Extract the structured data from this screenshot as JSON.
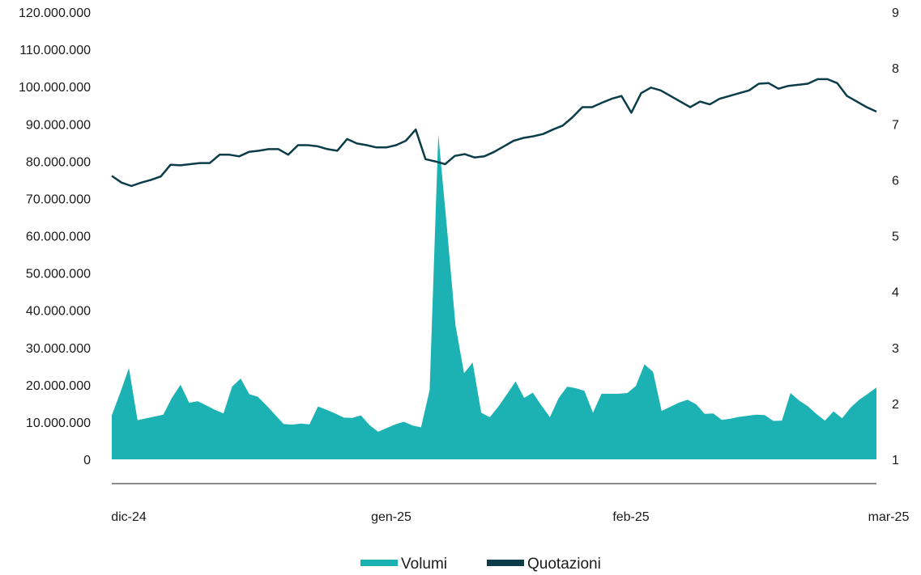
{
  "chart_data": {
    "type": "area",
    "x_labels": [
      "dic-24",
      "gen-25",
      "feb-25",
      "mar-25"
    ],
    "y_left": {
      "ticks": [
        "0",
        "10.000.000",
        "20.000.000",
        "30.000.000",
        "40.000.000",
        "50.000.000",
        "60.000.000",
        "70.000.000",
        "80.000.000",
        "90.000.000",
        "100.000.000",
        "110.000.000",
        "120.000.000"
      ],
      "range": [
        0,
        120000000
      ]
    },
    "y_right": {
      "ticks": [
        "1",
        "2",
        "3",
        "4",
        "5",
        "6",
        "7",
        "8",
        "9"
      ],
      "range": [
        1,
        9
      ]
    },
    "grid": false,
    "legend_position": "bottom-center",
    "series": [
      {
        "name": "Volumi",
        "kind": "area",
        "axis": "left",
        "color": "#1cb2b3",
        "values": [
          11800000,
          18000000,
          24500000,
          10500000,
          11000000,
          11500000,
          12000000,
          16500000,
          20000000,
          15200000,
          15600000,
          14500000,
          13300000,
          12300000,
          19500000,
          21700000,
          17500000,
          16800000,
          14500000,
          12000000,
          9500000,
          9300000,
          9600000,
          9400000,
          14200000,
          13300000,
          12300000,
          11200000,
          11100000,
          11800000,
          9200000,
          7400000,
          8400000,
          9400000,
          10100000,
          9100000,
          8600000,
          18600000,
          87200000,
          62300000,
          36000000,
          23100000,
          26000000,
          12500000,
          11300000,
          14200000,
          17500000,
          20900000,
          16500000,
          17900000,
          14500000,
          11300000,
          16400000,
          19500000,
          19100000,
          18400000,
          12500000,
          17600000,
          17600000,
          17600000,
          17800000,
          19700000,
          25500000,
          23500000,
          13000000,
          14100000,
          15200000,
          16000000,
          14800000,
          12200000,
          12300000,
          10600000,
          10900000,
          11400000,
          11700000,
          12000000,
          11900000,
          10300000,
          10400000,
          17800000,
          15800000,
          14300000,
          12200000,
          10400000,
          12900000,
          11000000,
          13900000,
          16000000,
          17600000,
          19300000
        ]
      },
      {
        "name": "Quotazioni",
        "kind": "line",
        "axis": "right",
        "color": "#0b3c49",
        "values": [
          6.07,
          5.95,
          5.89,
          5.95,
          6.0,
          6.06,
          6.27,
          6.26,
          6.28,
          6.3,
          6.3,
          6.45,
          6.45,
          6.42,
          6.5,
          6.52,
          6.55,
          6.55,
          6.45,
          6.62,
          6.62,
          6.6,
          6.55,
          6.52,
          6.73,
          6.65,
          6.62,
          6.58,
          6.58,
          6.62,
          6.7,
          6.9,
          6.37,
          6.33,
          6.28,
          6.43,
          6.46,
          6.4,
          6.42,
          6.5,
          6.6,
          6.7,
          6.75,
          6.78,
          6.82,
          6.9,
          6.97,
          7.12,
          7.3,
          7.3,
          7.38,
          7.45,
          7.5,
          7.2,
          7.55,
          7.65,
          7.6,
          7.5,
          7.4,
          7.3,
          7.4,
          7.35,
          7.45,
          7.5,
          7.55,
          7.6,
          7.72,
          7.73,
          7.63,
          7.68,
          7.7,
          7.72,
          7.8,
          7.8,
          7.73,
          7.5,
          7.4,
          7.3,
          7.22
        ],
        "extra_pairs": []
      }
    ],
    "title": "",
    "xlabel": "",
    "ylabel": ""
  }
}
